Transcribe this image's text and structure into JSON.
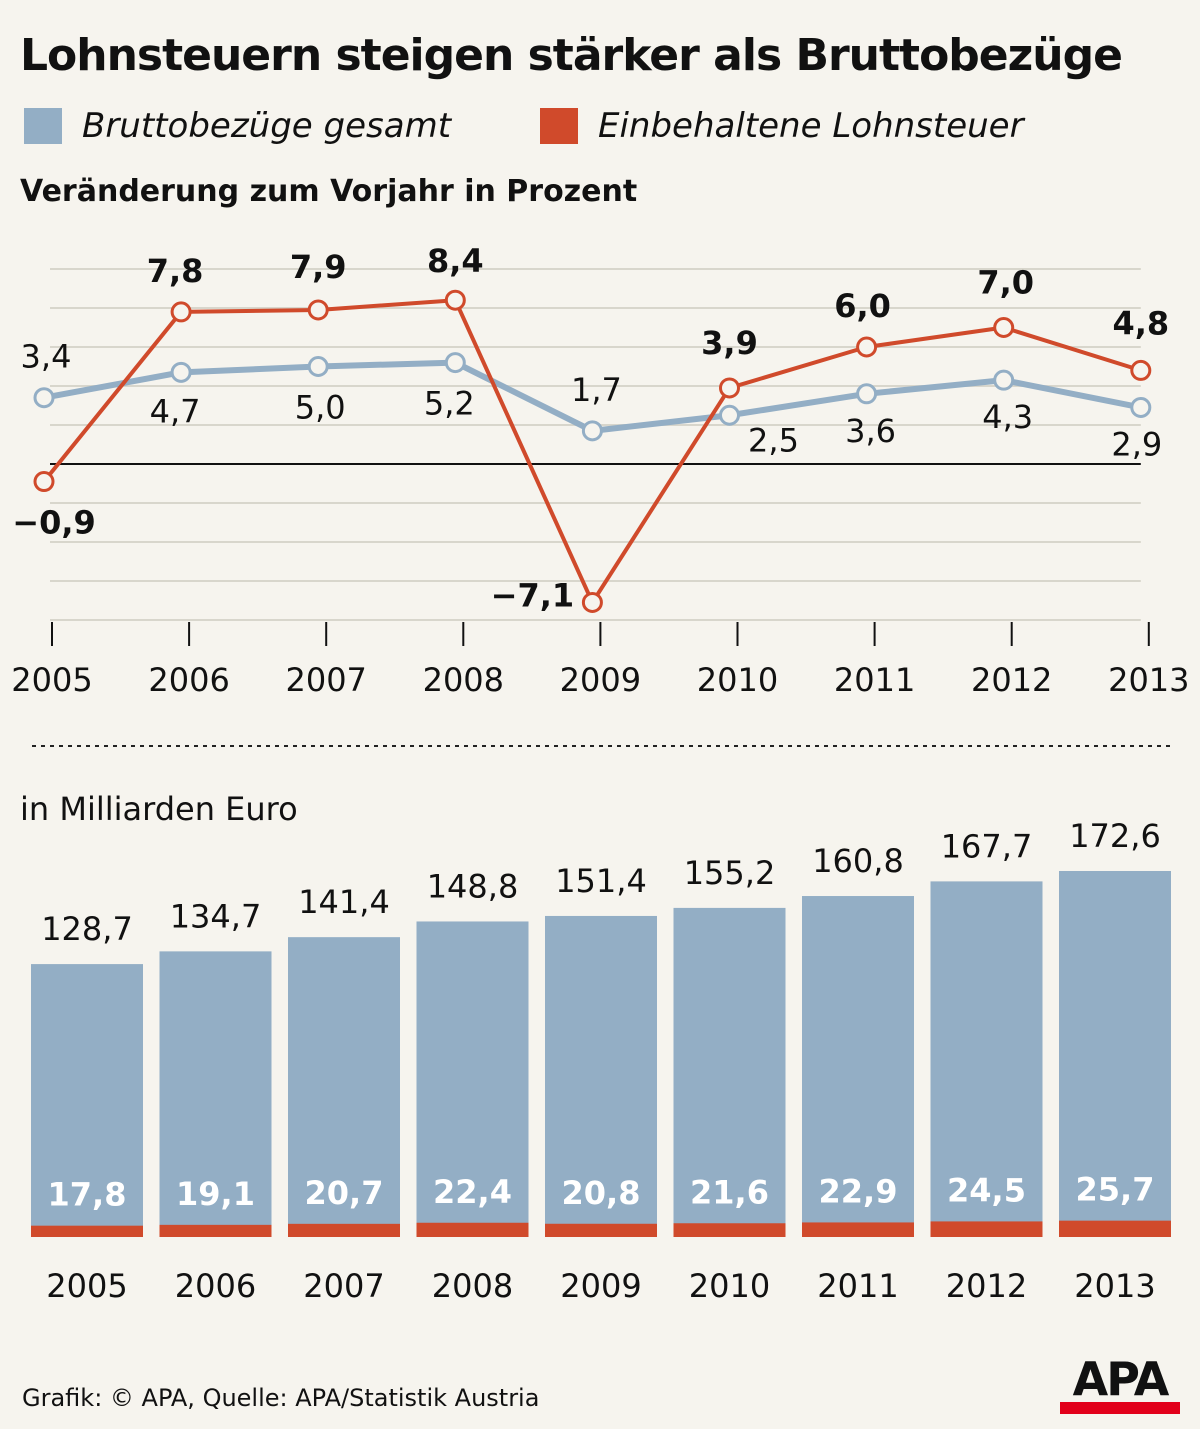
{
  "header": {
    "title": "Lohnsteuern steigen stärker als Bruttobezüge",
    "legend": [
      {
        "label": "Bruttobezüge gesamt",
        "color": "#93aec5"
      },
      {
        "label": "Einbehaltene Lohnsteuer",
        "color": "#d04a2b"
      }
    ]
  },
  "footer": {
    "source": "Grafik: © APA, Quelle: APA/Statistik Austria",
    "logo": "APA"
  },
  "chart_data": [
    {
      "type": "line",
      "title": "Veränderung zum Vorjahr in Prozent",
      "x": [
        "2005",
        "2006",
        "2007",
        "2008",
        "2009",
        "2010",
        "2011",
        "2012",
        "2013"
      ],
      "series": [
        {
          "name": "Bruttobezüge gesamt",
          "color": "#93aec5",
          "values": [
            3.4,
            4.7,
            5.0,
            5.2,
            1.7,
            2.5,
            3.6,
            4.3,
            2.9
          ],
          "labels": [
            "3,4",
            "4,7",
            "5,0",
            "5,2",
            "1,7",
            "2,5",
            "3,6",
            "4,3",
            "2,9"
          ]
        },
        {
          "name": "Einbehaltene Lohnsteuer",
          "color": "#d04a2b",
          "values": [
            -0.9,
            7.8,
            7.9,
            8.4,
            -7.1,
            3.9,
            6.0,
            7.0,
            4.8
          ],
          "labels": [
            "−0,9",
            "7,8",
            "7,9",
            "8,4",
            "−7,1",
            "3,9",
            "6,0",
            "7,0",
            "4,8"
          ]
        }
      ],
      "ylim": [
        -8,
        10
      ],
      "grid": true
    },
    {
      "type": "bar",
      "title": "in Milliarden Euro",
      "categories": [
        "2005",
        "2006",
        "2007",
        "2008",
        "2009",
        "2010",
        "2011",
        "2012",
        "2013"
      ],
      "series": [
        {
          "name": "Bruttobezüge gesamt",
          "color": "#93aec5",
          "values": [
            128.7,
            134.7,
            141.4,
            148.8,
            151.4,
            155.2,
            160.8,
            167.7,
            172.6
          ],
          "labels": [
            "128,7",
            "134,7",
            "141,4",
            "148,8",
            "151,4",
            "155,2",
            "160,8",
            "167,7",
            "172,6"
          ]
        },
        {
          "name": "Einbehaltene Lohnsteuer",
          "color": "#d04a2b",
          "values": [
            17.8,
            19.1,
            20.7,
            22.4,
            20.8,
            21.6,
            22.9,
            24.5,
            25.7
          ],
          "labels": [
            "17,8",
            "19,1",
            "20,7",
            "22,4",
            "20,8",
            "21,6",
            "22,9",
            "24,5",
            "25,7"
          ]
        }
      ],
      "ylim": [
        0,
        172.6
      ]
    }
  ]
}
